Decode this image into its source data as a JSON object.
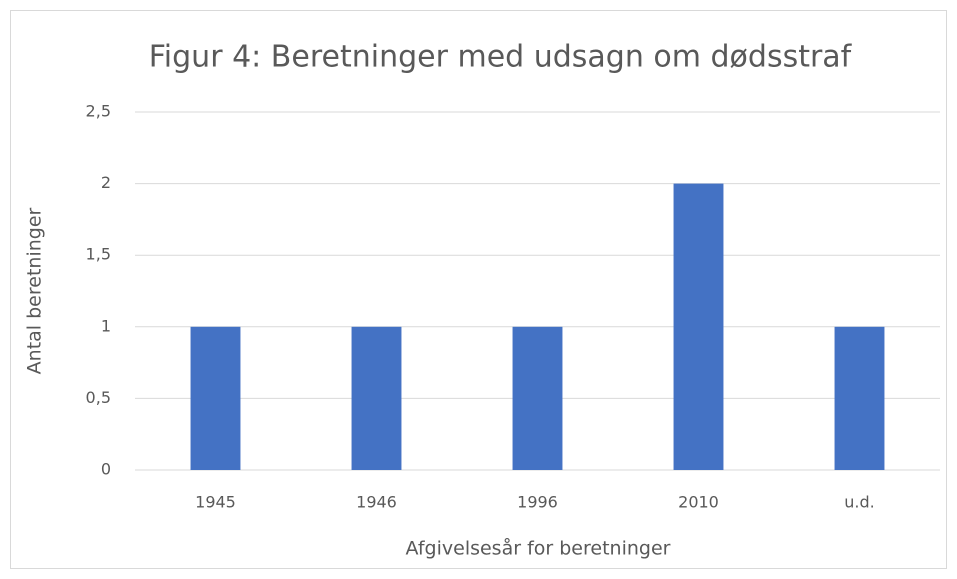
{
  "chart_data": {
    "type": "bar",
    "title": "Figur 4: Beretninger med udsagn om dødsstraf",
    "categories": [
      "1945",
      "1946",
      "1996",
      "2010",
      "u.d."
    ],
    "values": [
      1,
      1,
      1,
      2,
      1
    ],
    "color": "#4472c4",
    "xlabel": "Afgivelsesår for beretninger",
    "ylabel": "Antal beretninger",
    "ylim": [
      0,
      2.5
    ],
    "yticks": [
      0,
      {
        "value": 0.5,
        "label": "0,5"
      },
      1,
      {
        "value": 1.5,
        "label": "1,5"
      },
      2,
      {
        "value": 2.5,
        "label": "2,5"
      }
    ],
    "grid": true
  }
}
